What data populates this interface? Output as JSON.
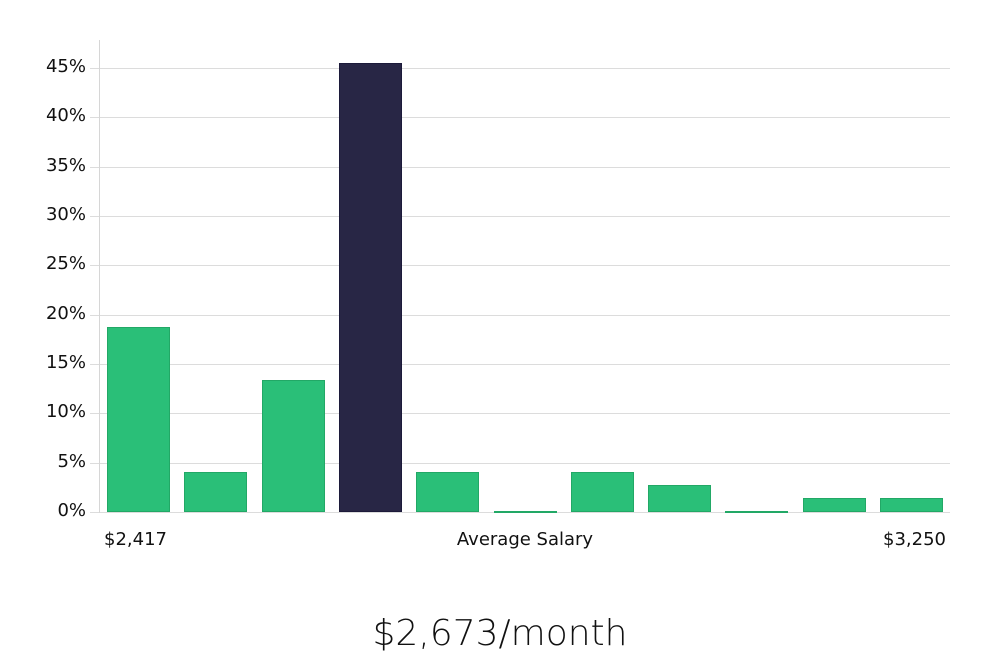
{
  "chart_data": {
    "type": "bar",
    "title": "",
    "xlabel": "Average Salary",
    "ylabel": "",
    "x_range_labels": {
      "min": "$2,417",
      "max": "$3,250"
    },
    "categories": [
      "bin1",
      "bin2",
      "bin3",
      "bin4",
      "bin5",
      "bin6",
      "bin7",
      "bin8",
      "bin9",
      "bin10",
      "bin11"
    ],
    "values": [
      18.7,
      4.1,
      13.4,
      45.5,
      4.1,
      0.0,
      4.1,
      2.7,
      0.0,
      1.4,
      1.4
    ],
    "highlight_index": 3,
    "ylim": [
      0,
      47
    ],
    "yticks": [
      "0%",
      "5%",
      "10%",
      "15%",
      "20%",
      "25%",
      "30%",
      "35%",
      "40%",
      "45%"
    ],
    "grid": true,
    "colors": {
      "bar": "#2abf78",
      "bar_border": "#22a866",
      "highlight": "#282645",
      "highlight_border": "#1c1a3a",
      "grid": "#dcdcdc"
    }
  },
  "labels": {
    "x_min": "$2,417",
    "x_center": "Average Salary",
    "x_max": "$3,250",
    "summary": "$2,673/month"
  }
}
